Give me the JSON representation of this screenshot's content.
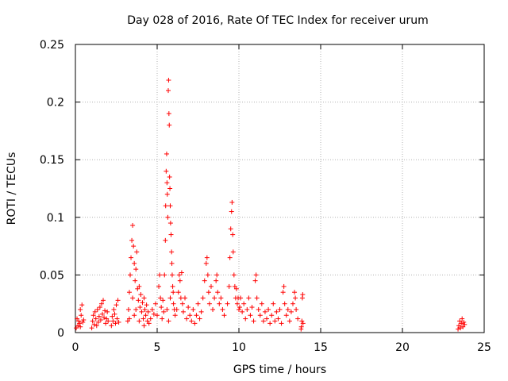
{
  "chart_data": {
    "type": "scatter",
    "title": "Day 028 of 2016, Rate Of TEC Index for receiver urum",
    "xlabel": "GPS time / hours",
    "ylabel": "ROTI / TECUs",
    "xlim": [
      0,
      25
    ],
    "ylim": [
      0,
      0.25
    ],
    "xticks": [
      0,
      5,
      10,
      15,
      20,
      25
    ],
    "xtick_labels": [
      "0",
      "5",
      "10",
      "15",
      "20",
      "25"
    ],
    "yticks": [
      0,
      0.05,
      0.1,
      0.15,
      0.2,
      0.25
    ],
    "ytick_labels": [
      "0",
      "0.05",
      "0.1",
      "0.15",
      "0.2",
      "0.25"
    ],
    "grid": true,
    "marker": "+",
    "marker_color": "#ff0000",
    "series": [
      {
        "points": [
          [
            0.05,
            0.004
          ],
          [
            0.1,
            0.012
          ],
          [
            0.15,
            0.006
          ],
          [
            0.2,
            0.01
          ],
          [
            0.25,
            0.008
          ],
          [
            0.3,
            0.02
          ],
          [
            0.35,
            0.015
          ],
          [
            0.4,
            0.024
          ],
          [
            0.45,
            0.009
          ],
          [
            0.5,
            0.011
          ],
          [
            0.3,
            0.005
          ],
          [
            1.0,
            0.004
          ],
          [
            1.05,
            0.01
          ],
          [
            1.1,
            0.015
          ],
          [
            1.15,
            0.007
          ],
          [
            1.2,
            0.018
          ],
          [
            1.25,
            0.012
          ],
          [
            1.3,
            0.006
          ],
          [
            1.35,
            0.02
          ],
          [
            1.4,
            0.009
          ],
          [
            1.45,
            0.014
          ],
          [
            1.5,
            0.022
          ],
          [
            1.55,
            0.011
          ],
          [
            1.6,
            0.025
          ],
          [
            1.65,
            0.016
          ],
          [
            1.7,
            0.028
          ],
          [
            1.75,
            0.013
          ],
          [
            1.8,
            0.019
          ],
          [
            1.85,
            0.008
          ],
          [
            1.9,
            0.012
          ],
          [
            1.95,
            0.018
          ],
          [
            2.0,
            0.01
          ],
          [
            2.2,
            0.006
          ],
          [
            2.25,
            0.014
          ],
          [
            2.3,
            0.01
          ],
          [
            2.35,
            0.02
          ],
          [
            2.4,
            0.016
          ],
          [
            2.45,
            0.008
          ],
          [
            2.5,
            0.024
          ],
          [
            2.55,
            0.012
          ],
          [
            2.6,
            0.028
          ],
          [
            2.65,
            0.009
          ],
          [
            3.2,
            0.01
          ],
          [
            3.25,
            0.02
          ],
          [
            3.3,
            0.035
          ],
          [
            3.35,
            0.05
          ],
          [
            3.4,
            0.065
          ],
          [
            3.45,
            0.08
          ],
          [
            3.5,
            0.093
          ],
          [
            3.55,
            0.075
          ],
          [
            3.6,
            0.06
          ],
          [
            3.65,
            0.045
          ],
          [
            3.7,
            0.055
          ],
          [
            3.75,
            0.07
          ],
          [
            3.8,
            0.038
          ],
          [
            3.85,
            0.028
          ],
          [
            3.9,
            0.04
          ],
          [
            3.95,
            0.022
          ],
          [
            4.0,
            0.033
          ],
          [
            4.05,
            0.018
          ],
          [
            4.1,
            0.026
          ],
          [
            4.15,
            0.012
          ],
          [
            4.2,
            0.03
          ],
          [
            4.25,
            0.02
          ],
          [
            4.3,
            0.015
          ],
          [
            4.35,
            0.024
          ],
          [
            4.4,
            0.01
          ],
          [
            4.45,
            0.018
          ],
          [
            4.5,
            0.008
          ],
          [
            3.3,
            0.012
          ],
          [
            3.6,
            0.015
          ],
          [
            3.9,
            0.01
          ],
          [
            4.2,
            0.006
          ],
          [
            3.5,
            0.03
          ],
          [
            3.7,
            0.02
          ],
          [
            4.6,
            0.012
          ],
          [
            4.7,
            0.02
          ],
          [
            4.8,
            0.016
          ],
          [
            4.9,
            0.025
          ],
          [
            5.0,
            0.015
          ],
          [
            5.1,
            0.04
          ],
          [
            5.15,
            0.05
          ],
          [
            5.2,
            0.03
          ],
          [
            5.25,
            0.022
          ],
          [
            5.3,
            0.012
          ],
          [
            5.35,
            0.028
          ],
          [
            5.4,
            0.018
          ],
          [
            5.45,
            0.05
          ],
          [
            5.5,
            0.08
          ],
          [
            5.52,
            0.11
          ],
          [
            5.55,
            0.14
          ],
          [
            5.58,
            0.155
          ],
          [
            5.6,
            0.13
          ],
          [
            5.62,
            0.12
          ],
          [
            5.65,
            0.1
          ],
          [
            5.68,
            0.21
          ],
          [
            5.7,
            0.219
          ],
          [
            5.72,
            0.19
          ],
          [
            5.74,
            0.18
          ],
          [
            5.76,
            0.135
          ],
          [
            5.78,
            0.125
          ],
          [
            5.8,
            0.11
          ],
          [
            5.82,
            0.095
          ],
          [
            5.85,
            0.085
          ],
          [
            5.88,
            0.07
          ],
          [
            5.9,
            0.06
          ],
          [
            5.92,
            0.05
          ],
          [
            5.95,
            0.04
          ],
          [
            5.98,
            0.035
          ],
          [
            6.0,
            0.025
          ],
          [
            6.05,
            0.02
          ],
          [
            6.1,
            0.015
          ],
          [
            5.6,
            0.02
          ],
          [
            5.7,
            0.01
          ],
          [
            5.8,
            0.03
          ],
          [
            6.2,
            0.02
          ],
          [
            6.3,
            0.035
          ],
          [
            6.35,
            0.05
          ],
          [
            6.4,
            0.045
          ],
          [
            6.45,
            0.03
          ],
          [
            6.5,
            0.052
          ],
          [
            6.55,
            0.025
          ],
          [
            6.6,
            0.018
          ],
          [
            6.7,
            0.03
          ],
          [
            6.8,
            0.012
          ],
          [
            6.9,
            0.022
          ],
          [
            7.0,
            0.015
          ],
          [
            7.1,
            0.01
          ],
          [
            7.2,
            0.02
          ],
          [
            7.3,
            0.008
          ],
          [
            7.4,
            0.015
          ],
          [
            7.5,
            0.025
          ],
          [
            7.6,
            0.012
          ],
          [
            7.7,
            0.018
          ],
          [
            7.8,
            0.03
          ],
          [
            7.9,
            0.045
          ],
          [
            8.0,
            0.06
          ],
          [
            8.05,
            0.065
          ],
          [
            8.1,
            0.05
          ],
          [
            8.15,
            0.035
          ],
          [
            8.2,
            0.025
          ],
          [
            8.3,
            0.04
          ],
          [
            8.4,
            0.02
          ],
          [
            8.5,
            0.03
          ],
          [
            8.6,
            0.045
          ],
          [
            8.65,
            0.05
          ],
          [
            8.7,
            0.035
          ],
          [
            8.8,
            0.025
          ],
          [
            8.9,
            0.03
          ],
          [
            9.0,
            0.02
          ],
          [
            9.1,
            0.015
          ],
          [
            9.3,
            0.025
          ],
          [
            9.4,
            0.04
          ],
          [
            9.45,
            0.065
          ],
          [
            9.5,
            0.09
          ],
          [
            9.55,
            0.105
          ],
          [
            9.58,
            0.113
          ],
          [
            9.62,
            0.085
          ],
          [
            9.65,
            0.07
          ],
          [
            9.7,
            0.05
          ],
          [
            9.75,
            0.04
          ],
          [
            9.8,
            0.03
          ],
          [
            9.85,
            0.038
          ],
          [
            9.9,
            0.025
          ],
          [
            9.95,
            0.03
          ],
          [
            10.0,
            0.02
          ],
          [
            10.05,
            0.022
          ],
          [
            10.1,
            0.03
          ],
          [
            10.2,
            0.018
          ],
          [
            10.3,
            0.025
          ],
          [
            10.4,
            0.012
          ],
          [
            10.5,
            0.02
          ],
          [
            10.6,
            0.03
          ],
          [
            10.7,
            0.015
          ],
          [
            10.8,
            0.022
          ],
          [
            10.9,
            0.01
          ],
          [
            11.0,
            0.045
          ],
          [
            11.05,
            0.05
          ],
          [
            11.1,
            0.03
          ],
          [
            11.2,
            0.02
          ],
          [
            11.3,
            0.015
          ],
          [
            11.4,
            0.025
          ],
          [
            11.5,
            0.01
          ],
          [
            11.6,
            0.018
          ],
          [
            11.7,
            0.012
          ],
          [
            11.8,
            0.02
          ],
          [
            11.9,
            0.008
          ],
          [
            12.0,
            0.015
          ],
          [
            12.1,
            0.025
          ],
          [
            12.2,
            0.01
          ],
          [
            12.3,
            0.018
          ],
          [
            12.4,
            0.012
          ],
          [
            12.5,
            0.02
          ],
          [
            12.6,
            0.008
          ],
          [
            12.7,
            0.035
          ],
          [
            12.75,
            0.04
          ],
          [
            12.8,
            0.025
          ],
          [
            12.9,
            0.015
          ],
          [
            13.0,
            0.02
          ],
          [
            13.1,
            0.01
          ],
          [
            13.2,
            0.018
          ],
          [
            13.3,
            0.025
          ],
          [
            13.4,
            0.035
          ],
          [
            13.45,
            0.03
          ],
          [
            13.5,
            0.02
          ],
          [
            13.6,
            0.012
          ],
          [
            13.8,
            0.003
          ],
          [
            13.82,
            0.005
          ],
          [
            13.85,
            0.01
          ],
          [
            13.88,
            0.03
          ],
          [
            13.9,
            0.033
          ],
          [
            13.92,
            0.008
          ],
          [
            23.4,
            0.003
          ],
          [
            23.45,
            0.006
          ],
          [
            23.5,
            0.01
          ],
          [
            23.55,
            0.004
          ],
          [
            23.6,
            0.008
          ],
          [
            23.65,
            0.012
          ],
          [
            23.7,
            0.005
          ],
          [
            23.75,
            0.009
          ],
          [
            23.8,
            0.007
          ]
        ]
      }
    ]
  }
}
